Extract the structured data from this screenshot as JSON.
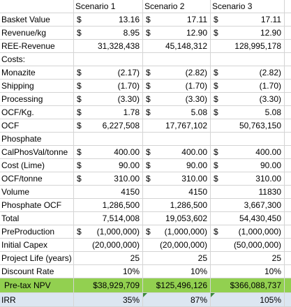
{
  "spreadsheet": {
    "headers": [
      "",
      "Scenario 1",
      "Scenario 2",
      "Scenario 3"
    ],
    "rows": [
      {
        "label": "Basket Value",
        "cells": [
          {
            "cur": "$",
            "val": "13.16"
          },
          {
            "cur": "$",
            "val": "17.11"
          },
          {
            "cur": "$",
            "val": "17.11"
          }
        ]
      },
      {
        "label": "Revenue/kg",
        "cells": [
          {
            "cur": "$",
            "val": "8.95"
          },
          {
            "cur": "$",
            "val": "12.90"
          },
          {
            "cur": "$",
            "val": "12.90"
          }
        ]
      },
      {
        "label": "REE-Revenue",
        "cells": [
          {
            "cur": "",
            "val": "31,328,438"
          },
          {
            "cur": "",
            "val": "45,148,312"
          },
          {
            "cur": "",
            "val": "128,995,178"
          }
        ]
      },
      {
        "label": "Costs:",
        "cells": [
          {
            "cur": "",
            "val": ""
          },
          {
            "cur": "",
            "val": ""
          },
          {
            "cur": "",
            "val": ""
          }
        ]
      },
      {
        "label": "Monazite",
        "cells": [
          {
            "cur": "$",
            "val": "(2.17)"
          },
          {
            "cur": "$",
            "val": "(2.82)"
          },
          {
            "cur": "$",
            "val": "(2.82)"
          }
        ]
      },
      {
        "label": "Shipping",
        "cells": [
          {
            "cur": "$",
            "val": "(1.70)"
          },
          {
            "cur": "$",
            "val": "(1.70)"
          },
          {
            "cur": "$",
            "val": "(1.70)"
          }
        ]
      },
      {
        "label": "Processing",
        "cells": [
          {
            "cur": "$",
            "val": "(3.30)"
          },
          {
            "cur": "$",
            "val": "(3.30)"
          },
          {
            "cur": "$",
            "val": "(3.30)"
          }
        ]
      },
      {
        "label": "OCF/Kg.",
        "cells": [
          {
            "cur": "$",
            "val": "1.78"
          },
          {
            "cur": "$",
            "val": "5.08"
          },
          {
            "cur": "$",
            "val": "5.08"
          }
        ]
      },
      {
        "label": "OCF",
        "cells": [
          {
            "cur": "$",
            "val": "6,227,508"
          },
          {
            "cur": "",
            "val": "17,767,102"
          },
          {
            "cur": "",
            "val": "50,763,150"
          }
        ]
      },
      {
        "label": "Phosphate",
        "cells": [
          {
            "cur": "",
            "val": ""
          },
          {
            "cur": "",
            "val": ""
          },
          {
            "cur": "",
            "val": ""
          }
        ]
      },
      {
        "label": "CalPhosVal/tonne",
        "cells": [
          {
            "cur": "$",
            "val": "400.00"
          },
          {
            "cur": "$",
            "val": "400.00"
          },
          {
            "cur": "$",
            "val": "400.00"
          }
        ]
      },
      {
        "label": "Cost (Lime)",
        "cells": [
          {
            "cur": "$",
            "val": "90.00"
          },
          {
            "cur": "$",
            "val": "90.00"
          },
          {
            "cur": "$",
            "val": "90.00"
          }
        ]
      },
      {
        "label": "OCF/tonne",
        "cells": [
          {
            "cur": "$",
            "val": "310.00"
          },
          {
            "cur": "$",
            "val": "310.00"
          },
          {
            "cur": "$",
            "val": "310.00"
          }
        ]
      },
      {
        "label": "Volume",
        "cells": [
          {
            "cur": "",
            "val": "4150"
          },
          {
            "cur": "",
            "val": "4150"
          },
          {
            "cur": "",
            "val": "11830"
          }
        ]
      },
      {
        "label": "Phosphate OCF",
        "cells": [
          {
            "cur": "",
            "val": "1,286,500"
          },
          {
            "cur": "",
            "val": "1,286,500"
          },
          {
            "cur": "",
            "val": "3,667,300"
          }
        ]
      },
      {
        "label": "Total",
        "cells": [
          {
            "cur": "",
            "val": "7,514,008"
          },
          {
            "cur": "",
            "val": "19,053,602"
          },
          {
            "cur": "",
            "val": "54,430,450"
          }
        ]
      },
      {
        "label": "PreProduction",
        "cells": [
          {
            "cur": "$",
            "val": "(1,000,000)"
          },
          {
            "cur": "$",
            "val": "(1,000,000)"
          },
          {
            "cur": "$",
            "val": "(1,000,000)"
          }
        ]
      },
      {
        "label": "Initial Capex",
        "cells": [
          {
            "cur": "",
            "val": "(20,000,000)"
          },
          {
            "cur": "",
            "val": "(20,000,000)"
          },
          {
            "cur": "",
            "val": "(50,000,000)"
          }
        ]
      },
      {
        "label": "Project Life (years)",
        "cells": [
          {
            "cur": "",
            "val": "25"
          },
          {
            "cur": "",
            "val": "25"
          },
          {
            "cur": "",
            "val": "25"
          }
        ]
      },
      {
        "label": "Discount Rate",
        "cells": [
          {
            "cur": "",
            "val": "10%"
          },
          {
            "cur": "",
            "val": "10%"
          },
          {
            "cur": "",
            "val": "10%"
          }
        ]
      },
      {
        "label": "Pre-tax NPV",
        "cells": [
          {
            "cur": "",
            "val": "$38,929,709"
          },
          {
            "cur": "",
            "val": "$125,496,126"
          },
          {
            "cur": "",
            "val": "$366,088,737"
          }
        ]
      },
      {
        "label": "IRR",
        "cells": [
          {
            "cur": "",
            "val": "35%"
          },
          {
            "cur": "",
            "val": "87%"
          },
          {
            "cur": "",
            "val": "105%"
          }
        ]
      }
    ],
    "colors": {
      "npv_row_fill": "#92d050",
      "irr_row_fill": "#dce6f1",
      "gridline": "#d4d4d4",
      "error_indicator": "#3a8a3a"
    }
  }
}
